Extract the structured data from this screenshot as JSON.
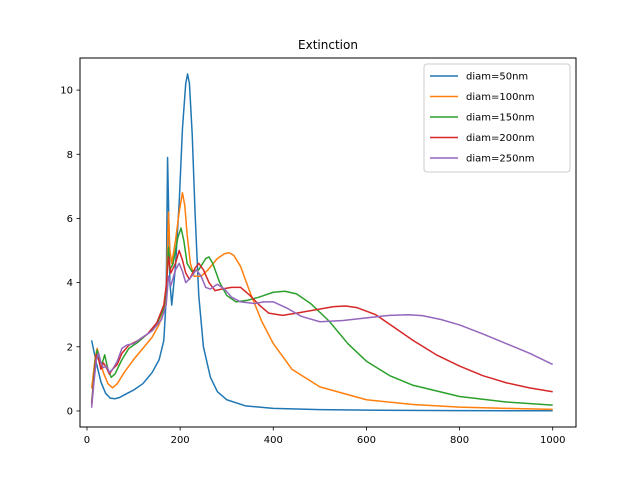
{
  "chart_data": {
    "type": "line",
    "title": "Extinction",
    "xlabel": "",
    "ylabel": "",
    "xlim": [
      -15,
      1050
    ],
    "ylim": [
      -0.5,
      11.0
    ],
    "xticks": [
      0,
      200,
      400,
      600,
      800,
      1000
    ],
    "yticks": [
      0,
      2,
      4,
      6,
      8,
      10
    ],
    "grid": false,
    "legend": "top-right",
    "series": [
      {
        "name": "diam=50nm",
        "color": "#1f77b4",
        "points": [
          [
            10,
            2.2
          ],
          [
            20,
            1.5
          ],
          [
            30,
            0.9
          ],
          [
            40,
            0.55
          ],
          [
            50,
            0.4
          ],
          [
            60,
            0.38
          ],
          [
            70,
            0.42
          ],
          [
            80,
            0.5
          ],
          [
            100,
            0.65
          ],
          [
            120,
            0.85
          ],
          [
            140,
            1.2
          ],
          [
            155,
            1.6
          ],
          [
            165,
            2.2
          ],
          [
            170,
            3.5
          ],
          [
            173,
            7.9
          ],
          [
            175,
            6.5
          ],
          [
            178,
            4.0
          ],
          [
            182,
            3.3
          ],
          [
            190,
            4.5
          ],
          [
            198,
            6.5
          ],
          [
            205,
            8.8
          ],
          [
            212,
            10.2
          ],
          [
            216,
            10.5
          ],
          [
            220,
            10.2
          ],
          [
            226,
            8.6
          ],
          [
            232,
            6.2
          ],
          [
            240,
            3.6
          ],
          [
            250,
            2.0
          ],
          [
            265,
            1.05
          ],
          [
            280,
            0.6
          ],
          [
            300,
            0.35
          ],
          [
            340,
            0.16
          ],
          [
            400,
            0.08
          ],
          [
            500,
            0.04
          ],
          [
            600,
            0.025
          ],
          [
            800,
            0.01
          ],
          [
            1000,
            0.005
          ]
        ]
      },
      {
        "name": "diam=100nm",
        "color": "#ff7f0e",
        "points": [
          [
            10,
            0.7
          ],
          [
            18,
            1.7
          ],
          [
            22,
            1.95
          ],
          [
            28,
            1.6
          ],
          [
            35,
            1.2
          ],
          [
            45,
            0.85
          ],
          [
            55,
            0.72
          ],
          [
            65,
            0.85
          ],
          [
            80,
            1.2
          ],
          [
            100,
            1.6
          ],
          [
            120,
            1.95
          ],
          [
            140,
            2.3
          ],
          [
            155,
            2.7
          ],
          [
            165,
            3.1
          ],
          [
            170,
            3.6
          ],
          [
            175,
            6.2
          ],
          [
            178,
            5.0
          ],
          [
            182,
            4.6
          ],
          [
            190,
            5.3
          ],
          [
            198,
            6.2
          ],
          [
            205,
            6.8
          ],
          [
            210,
            6.4
          ],
          [
            215,
            5.5
          ],
          [
            222,
            4.6
          ],
          [
            230,
            4.2
          ],
          [
            245,
            4.2
          ],
          [
            260,
            4.4
          ],
          [
            280,
            4.75
          ],
          [
            295,
            4.9
          ],
          [
            305,
            4.93
          ],
          [
            315,
            4.85
          ],
          [
            330,
            4.5
          ],
          [
            350,
            3.7
          ],
          [
            375,
            2.8
          ],
          [
            400,
            2.1
          ],
          [
            440,
            1.3
          ],
          [
            500,
            0.75
          ],
          [
            600,
            0.35
          ],
          [
            700,
            0.2
          ],
          [
            800,
            0.12
          ],
          [
            900,
            0.08
          ],
          [
            1000,
            0.05
          ]
        ]
      },
      {
        "name": "diam=150nm",
        "color": "#2ca02c",
        "points": [
          [
            10,
            0.25
          ],
          [
            18,
            1.6
          ],
          [
            22,
            1.9
          ],
          [
            27,
            1.5
          ],
          [
            33,
            1.5
          ],
          [
            38,
            1.75
          ],
          [
            45,
            1.3
          ],
          [
            52,
            1.05
          ],
          [
            60,
            1.15
          ],
          [
            75,
            1.6
          ],
          [
            90,
            1.95
          ],
          [
            110,
            2.15
          ],
          [
            130,
            2.4
          ],
          [
            150,
            2.7
          ],
          [
            165,
            3.2
          ],
          [
            170,
            3.7
          ],
          [
            175,
            5.1
          ],
          [
            178,
            4.4
          ],
          [
            185,
            4.6
          ],
          [
            195,
            5.4
          ],
          [
            202,
            5.7
          ],
          [
            208,
            5.3
          ],
          [
            215,
            4.6
          ],
          [
            225,
            4.35
          ],
          [
            240,
            4.4
          ],
          [
            255,
            4.75
          ],
          [
            262,
            4.8
          ],
          [
            270,
            4.6
          ],
          [
            285,
            4.0
          ],
          [
            300,
            3.6
          ],
          [
            320,
            3.4
          ],
          [
            345,
            3.45
          ],
          [
            370,
            3.55
          ],
          [
            400,
            3.7
          ],
          [
            425,
            3.73
          ],
          [
            450,
            3.65
          ],
          [
            480,
            3.35
          ],
          [
            520,
            2.8
          ],
          [
            560,
            2.1
          ],
          [
            600,
            1.55
          ],
          [
            650,
            1.1
          ],
          [
            700,
            0.8
          ],
          [
            800,
            0.45
          ],
          [
            900,
            0.28
          ],
          [
            1000,
            0.18
          ]
        ]
      },
      {
        "name": "diam=200nm",
        "color": "#d62728",
        "points": [
          [
            10,
            0.2
          ],
          [
            15,
            1.0
          ],
          [
            20,
            1.75
          ],
          [
            25,
            1.6
          ],
          [
            30,
            1.3
          ],
          [
            35,
            1.5
          ],
          [
            40,
            1.4
          ],
          [
            48,
            1.15
          ],
          [
            55,
            1.3
          ],
          [
            65,
            1.45
          ],
          [
            75,
            1.8
          ],
          [
            90,
            2.05
          ],
          [
            110,
            2.2
          ],
          [
            130,
            2.4
          ],
          [
            150,
            2.75
          ],
          [
            165,
            3.3
          ],
          [
            170,
            3.9
          ],
          [
            175,
            4.8
          ],
          [
            180,
            4.3
          ],
          [
            190,
            4.6
          ],
          [
            198,
            5.0
          ],
          [
            205,
            4.7
          ],
          [
            212,
            4.3
          ],
          [
            220,
            4.1
          ],
          [
            232,
            4.45
          ],
          [
            240,
            4.6
          ],
          [
            250,
            4.4
          ],
          [
            262,
            4.0
          ],
          [
            275,
            3.75
          ],
          [
            290,
            3.8
          ],
          [
            310,
            3.85
          ],
          [
            330,
            3.85
          ],
          [
            350,
            3.6
          ],
          [
            370,
            3.3
          ],
          [
            390,
            3.05
          ],
          [
            420,
            2.98
          ],
          [
            450,
            3.05
          ],
          [
            490,
            3.15
          ],
          [
            530,
            3.25
          ],
          [
            555,
            3.27
          ],
          [
            580,
            3.22
          ],
          [
            620,
            3.0
          ],
          [
            660,
            2.6
          ],
          [
            700,
            2.2
          ],
          [
            750,
            1.75
          ],
          [
            800,
            1.4
          ],
          [
            850,
            1.1
          ],
          [
            900,
            0.88
          ],
          [
            950,
            0.72
          ],
          [
            1000,
            0.6
          ]
        ]
      },
      {
        "name": "diam=250nm",
        "color": "#9467bd",
        "points": [
          [
            10,
            0.1
          ],
          [
            15,
            0.9
          ],
          [
            20,
            1.6
          ],
          [
            25,
            1.8
          ],
          [
            30,
            1.5
          ],
          [
            35,
            1.35
          ],
          [
            42,
            1.4
          ],
          [
            48,
            1.2
          ],
          [
            55,
            1.3
          ],
          [
            65,
            1.55
          ],
          [
            75,
            1.95
          ],
          [
            85,
            2.05
          ],
          [
            100,
            2.1
          ],
          [
            120,
            2.3
          ],
          [
            140,
            2.5
          ],
          [
            160,
            2.85
          ],
          [
            170,
            3.3
          ],
          [
            175,
            4.2
          ],
          [
            180,
            3.9
          ],
          [
            190,
            4.4
          ],
          [
            198,
            4.6
          ],
          [
            205,
            4.35
          ],
          [
            212,
            4.0
          ],
          [
            222,
            4.15
          ],
          [
            235,
            4.4
          ],
          [
            245,
            4.2
          ],
          [
            255,
            3.85
          ],
          [
            265,
            3.8
          ],
          [
            280,
            3.95
          ],
          [
            295,
            3.8
          ],
          [
            310,
            3.55
          ],
          [
            330,
            3.4
          ],
          [
            360,
            3.35
          ],
          [
            380,
            3.4
          ],
          [
            400,
            3.4
          ],
          [
            430,
            3.2
          ],
          [
            460,
            2.95
          ],
          [
            500,
            2.78
          ],
          [
            550,
            2.82
          ],
          [
            600,
            2.9
          ],
          [
            650,
            2.98
          ],
          [
            690,
            3.0
          ],
          [
            720,
            2.97
          ],
          [
            760,
            2.85
          ],
          [
            800,
            2.68
          ],
          [
            850,
            2.4
          ],
          [
            900,
            2.1
          ],
          [
            950,
            1.8
          ],
          [
            1000,
            1.45
          ]
        ]
      }
    ]
  }
}
